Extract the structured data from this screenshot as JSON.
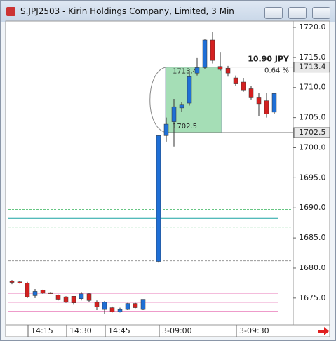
{
  "window_title": "S.JPJ2503 - Kirin Holdings Company, Limited, 3 Min",
  "chart_data": {
    "type": "candlestick",
    "categories": [
      null,
      null,
      "14:15",
      null,
      null,
      null,
      null,
      "14:30",
      null,
      null,
      null,
      null,
      "14:45",
      null,
      null,
      null,
      null,
      null,
      "3-09:00",
      null,
      null,
      null,
      null,
      null,
      null,
      null,
      null,
      null,
      "3-09:30",
      null,
      null,
      null,
      null,
      null
    ],
    "open": [
      1677.8,
      1677.7,
      1677.5,
      1675.4,
      1676.3,
      1675.9,
      1675.5,
      1675.2,
      1675.3,
      1674.9,
      1675.7,
      1674.3,
      1673.1,
      1673.4,
      1672.7,
      1673.1,
      1674.1,
      1673.1,
      1681.1,
      1702.0,
      1704.3,
      1706.6,
      1707.4,
      1712.4,
      1713.3,
      1717.9,
      1713.5,
      1713.2,
      1711.6,
      1710.9,
      1709.8,
      1708.4,
      1707.8,
      1705.9
    ],
    "high": [
      1678.0,
      1677.8,
      1677.7,
      1676.5,
      1676.4,
      1676.0,
      1675.6,
      1675.3,
      1675.3,
      1676.0,
      1675.8,
      1674.6,
      1674.5,
      1673.6,
      1673.4,
      1674.2,
      1674.2,
      1674.8,
      1702.1,
      1705.0,
      1708.1,
      1707.6,
      1712.8,
      1715.0,
      1718.0,
      1719.2,
      1715.9,
      1713.6,
      1712.0,
      1711.6,
      1710.2,
      1709.1,
      1709.1,
      1709.0
    ],
    "low": [
      1677.3,
      1677.4,
      1675.0,
      1675.0,
      1675.7,
      1675.7,
      1674.6,
      1674.2,
      1674.0,
      1674.6,
      1674.4,
      1673.0,
      1672.4,
      1672.6,
      1672.6,
      1673.0,
      1673.3,
      1673.0,
      1680.9,
      1701.0,
      1700.2,
      1706.0,
      1707.0,
      1712.0,
      1713.0,
      1714.0,
      1712.8,
      1711.8,
      1710.2,
      1709.3,
      1708.0,
      1705.3,
      1705.0,
      1705.6
    ],
    "close": [
      1677.6,
      1677.5,
      1675.2,
      1676.1,
      1675.8,
      1675.8,
      1674.8,
      1674.3,
      1674.2,
      1675.7,
      1674.6,
      1673.5,
      1674.3,
      1672.7,
      1673.1,
      1674.1,
      1673.4,
      1674.8,
      1702.0,
      1703.9,
      1706.8,
      1707.2,
      1711.8,
      1713.3,
      1717.9,
      1714.5,
      1713.0,
      1712.4,
      1710.6,
      1709.6,
      1708.4,
      1707.3,
      1705.6,
      1709.0
    ],
    "up_color": "#1f6fd6",
    "down_color": "#d42020",
    "ylim": [
      1670.55,
      1721.05
    ],
    "yticks": [
      {
        "value": 1675,
        "label": "1675.0"
      },
      {
        "value": 1680,
        "label": "1680.0"
      },
      {
        "value": 1685,
        "label": "1685.0"
      },
      {
        "value": 1690,
        "label": "1690.0"
      },
      {
        "value": 1695,
        "label": "1695.0"
      },
      {
        "value": 1700,
        "label": "1700.0"
      },
      {
        "value": 1705,
        "label": "1705.0"
      },
      {
        "value": 1710,
        "label": "1710.0"
      },
      {
        "value": 1715,
        "label": "1715.0"
      },
      {
        "value": 1720,
        "label": "1720.0"
      }
    ],
    "levels": [
      {
        "value": 1689.7,
        "color": "#33b35a",
        "style": "dashed"
      },
      {
        "value": 1688.3,
        "color": "#1aa3a3",
        "style": "solid"
      },
      {
        "value": 1686.8,
        "color": "#33b35a",
        "style": "dashed"
      },
      {
        "value": 1681.2,
        "color": "#999999",
        "style": "dashed"
      },
      {
        "value": 1675.8,
        "color": "#e87ab8",
        "style": "solid"
      },
      {
        "value": 1674.3,
        "color": "#e87ab8",
        "style": "solid"
      },
      {
        "value": 1672.8,
        "color": "#e87ab8",
        "style": "solid"
      }
    ],
    "measure": {
      "top": 1713.4,
      "bottom": 1702.5,
      "change": "10.90 JPY",
      "percent": "0.64 %"
    }
  }
}
